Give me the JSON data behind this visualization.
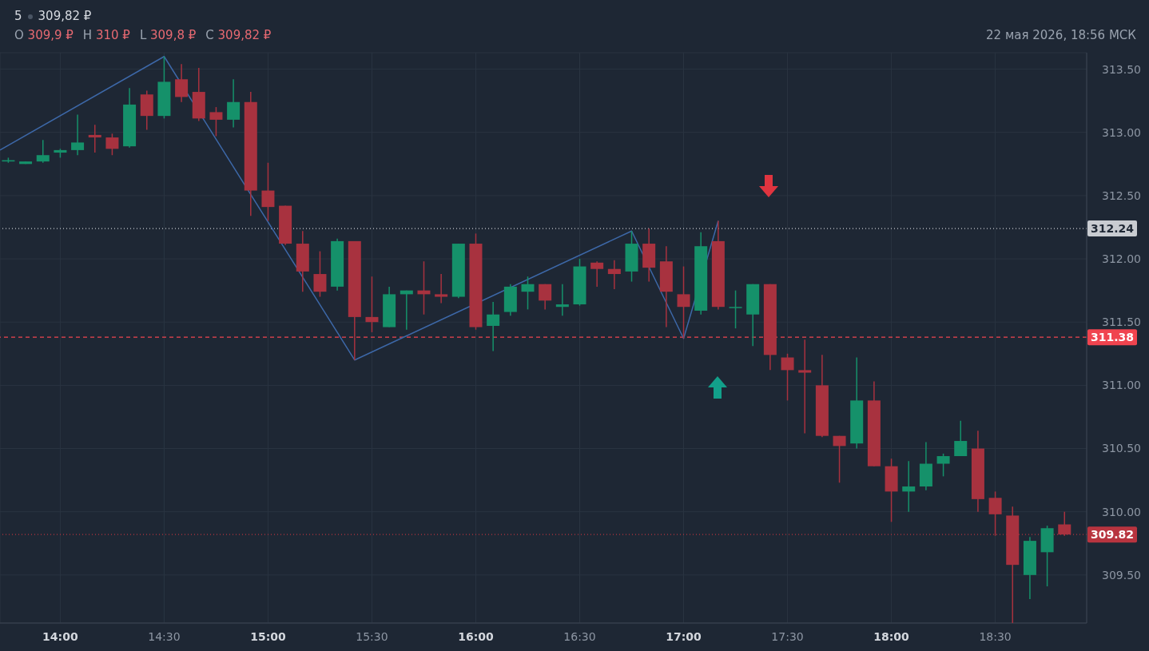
{
  "chart_data": {
    "type": "candlestick",
    "annotations": [
      "5",
      "309,82 ₽",
      "O",
      "309,9 ₽",
      "H",
      "310 ₽",
      "L",
      "309,8 ₽",
      "C",
      "309,82 ₽",
      "22 мая 2026, 18:56 МСК"
    ],
    "x": [
      13.75,
      13.8333,
      13.9167,
      14,
      14.0833,
      14.1667,
      14.25,
      14.3333,
      14.4167,
      14.5,
      14.5833,
      14.6667,
      14.75,
      14.8333,
      14.9167,
      15,
      15.0833,
      15.1667,
      15.25,
      15.3333,
      15.4167,
      15.5,
      15.5833,
      15.6667,
      15.75,
      15.8333,
      15.9167,
      16,
      16.0833,
      16.1667,
      16.25,
      16.3333,
      16.4167,
      16.5,
      16.5833,
      16.6667,
      16.75,
      16.8333,
      16.9167,
      17,
      17.0833,
      17.1667,
      17.25,
      17.3333,
      17.4167,
      17.5,
      17.5833,
      17.6667,
      17.75,
      17.8333,
      17.9167,
      18,
      18.0833,
      18.1667,
      18.25,
      18.3333,
      18.4167,
      18.5,
      18.5833,
      18.6667,
      18.75,
      18.8333
    ],
    "ohlc": [
      [
        312.77,
        312.8,
        312.76,
        312.78
      ],
      [
        312.75,
        312.77,
        312.75,
        312.77
      ],
      [
        312.77,
        312.94,
        312.76,
        312.82
      ],
      [
        312.84,
        312.87,
        312.8,
        312.86
      ],
      [
        312.86,
        313.14,
        312.82,
        312.92
      ],
      [
        312.98,
        313.06,
        312.84,
        312.96
      ],
      [
        312.96,
        312.99,
        312.82,
        312.87
      ],
      [
        312.89,
        313.35,
        312.88,
        313.22
      ],
      [
        313.3,
        313.33,
        313.02,
        313.13
      ],
      [
        313.13,
        313.6,
        313.11,
        313.4
      ],
      [
        313.42,
        313.54,
        313.24,
        313.28
      ],
      [
        313.32,
        313.51,
        313.09,
        313.11
      ],
      [
        313.16,
        313.2,
        312.97,
        313.1
      ],
      [
        313.1,
        313.42,
        313.04,
        313.24
      ],
      [
        313.24,
        313.32,
        312.34,
        312.54
      ],
      [
        312.54,
        312.76,
        312.3,
        312.41
      ],
      [
        312.42,
        312.42,
        312.11,
        312.12
      ],
      [
        312.12,
        312.22,
        311.74,
        311.9
      ],
      [
        311.88,
        312.06,
        311.7,
        311.74
      ],
      [
        311.78,
        312.16,
        311.75,
        312.14
      ],
      [
        312.14,
        312.14,
        311.2,
        311.54
      ],
      [
        311.54,
        311.86,
        311.42,
        311.5
      ],
      [
        311.46,
        311.78,
        311.46,
        311.72
      ],
      [
        311.72,
        311.75,
        311.44,
        311.75
      ],
      [
        311.75,
        311.98,
        311.56,
        311.72
      ],
      [
        311.72,
        311.88,
        311.65,
        311.7
      ],
      [
        311.7,
        312.12,
        311.69,
        312.12
      ],
      [
        312.12,
        312.2,
        311.44,
        311.46
      ],
      [
        311.47,
        311.66,
        311.27,
        311.56
      ],
      [
        311.58,
        311.8,
        311.55,
        311.78
      ],
      [
        311.74,
        311.86,
        311.6,
        311.8
      ],
      [
        311.8,
        311.8,
        311.6,
        311.67
      ],
      [
        311.62,
        311.8,
        311.55,
        311.64
      ],
      [
        311.64,
        312,
        311.63,
        311.94
      ],
      [
        311.97,
        311.98,
        311.78,
        311.92
      ],
      [
        311.92,
        311.99,
        311.76,
        311.88
      ],
      [
        311.9,
        312.22,
        311.82,
        312.12
      ],
      [
        312.12,
        312.24,
        311.82,
        311.93
      ],
      [
        311.98,
        312.1,
        311.46,
        311.74
      ],
      [
        311.72,
        311.94,
        311.37,
        311.62
      ],
      [
        311.59,
        312.21,
        311.56,
        312.1
      ],
      [
        312.14,
        312.3,
        311.6,
        311.62
      ],
      [
        311.62,
        311.75,
        311.45,
        311.62
      ],
      [
        311.56,
        311.8,
        311.31,
        311.8
      ],
      [
        311.8,
        311.8,
        311.12,
        311.24
      ],
      [
        311.22,
        311.25,
        310.88,
        311.12
      ],
      [
        311.12,
        311.36,
        310.62,
        311.1
      ],
      [
        311,
        311.24,
        310.59,
        310.6
      ],
      [
        310.6,
        310.6,
        310.23,
        310.52
      ],
      [
        310.54,
        311.22,
        310.5,
        310.88
      ],
      [
        310.88,
        311.03,
        310.36,
        310.36
      ],
      [
        310.36,
        310.42,
        309.92,
        310.16
      ],
      [
        310.16,
        310.4,
        310,
        310.2
      ],
      [
        310.2,
        310.55,
        310.17,
        310.38
      ],
      [
        310.38,
        310.46,
        310.28,
        310.44
      ],
      [
        310.44,
        310.72,
        310.44,
        310.56
      ],
      [
        310.5,
        310.64,
        310,
        310.1
      ],
      [
        310.11,
        310.16,
        309.81,
        309.98
      ],
      [
        309.97,
        310.04,
        309.12,
        309.58
      ],
      [
        309.5,
        309.8,
        309.31,
        309.77
      ],
      [
        309.68,
        309.89,
        309.41,
        309.87
      ],
      [
        309.9,
        310,
        309.81,
        309.82
      ]
    ],
    "colors": [
      "#15916a",
      "#15916a",
      "#15916a",
      "#15916a",
      "#15916a",
      "#a8323f",
      "#a8323f",
      "#15916a",
      "#a8323f",
      "#15916a",
      "#a8323f",
      "#a8323f",
      "#a8323f",
      "#15916a",
      "#a8323f",
      "#a8323f",
      "#a8323f",
      "#a8323f",
      "#a8323f",
      "#15916a",
      "#a8323f",
      "#a8323f",
      "#15916a",
      "#15916a",
      "#a8323f",
      "#a8323f",
      "#15916a",
      "#a8323f",
      "#15916a",
      "#15916a",
      "#15916a",
      "#a8323f",
      "#15916a",
      "#15916a",
      "#a8323f",
      "#a8323f",
      "#15916a",
      "#a8323f",
      "#a8323f",
      "#a8323f",
      "#15916a",
      "#a8323f",
      "#15916a",
      "#15916a",
      "#a8323f",
      "#a8323f",
      "#a8323f",
      "#a8323f",
      "#a8323f",
      "#15916a",
      "#a8323f",
      "#a8323f",
      "#15916a",
      "#15916a",
      "#15916a",
      "#15916a",
      "#a8323f",
      "#a8323f",
      "#a8323f",
      "#15916a",
      "#15916a",
      "#a8323f"
    ],
    "series": [
      {
        "type": "line",
        "color": "#3d68a8",
        "x": [
          13.71,
          14.5,
          15.4167,
          16.75,
          17,
          17.1667
        ],
        "values": [
          312.86,
          313.6,
          311.2,
          312.22,
          311.37,
          312.3
        ]
      }
    ],
    "xlim": [
      13.71,
      18.94
    ],
    "xticks": [
      {
        "value": 14,
        "label": "14:00"
      },
      {
        "value": 14.5,
        "label": "14:30"
      },
      {
        "value": 15,
        "label": "15:00"
      },
      {
        "value": 15.5,
        "label": "15:30"
      },
      {
        "value": 16,
        "label": "16:00"
      },
      {
        "value": 16.5,
        "label": "16:30"
      },
      {
        "value": 17,
        "label": "17:00"
      },
      {
        "value": 17.5,
        "label": "17:30"
      },
      {
        "value": 18,
        "label": "18:00"
      },
      {
        "value": 18.5,
        "label": "18:30"
      }
    ],
    "ylim": [
      309.12,
      313.63
    ],
    "yticks": [
      {
        "value": 309.5,
        "label": "309.50"
      },
      {
        "value": 310,
        "label": "310.00"
      },
      {
        "value": 310.5,
        "label": "310.50"
      },
      {
        "value": 311,
        "label": "311.00"
      },
      {
        "value": 311.5,
        "label": "311.50"
      },
      {
        "value": 312,
        "label": "312.00"
      },
      {
        "value": 312.5,
        "label": "312.50"
      },
      {
        "value": 313,
        "label": "313.00"
      },
      {
        "value": 313.5,
        "label": "313.50"
      }
    ],
    "ref_lines": [
      {
        "axis": "y",
        "value": 312.24,
        "label": "312.24",
        "color": "#c9ccd1",
        "line_style": "dotted"
      },
      {
        "axis": "y",
        "value": 311.38,
        "label": "311.38",
        "color": "#f0444f",
        "line_style": "dashed"
      },
      {
        "axis": "y",
        "value": 309.82,
        "label": "309.82",
        "color": "#b8343f",
        "line_style": "dotted"
      }
    ],
    "grid": true
  }
}
